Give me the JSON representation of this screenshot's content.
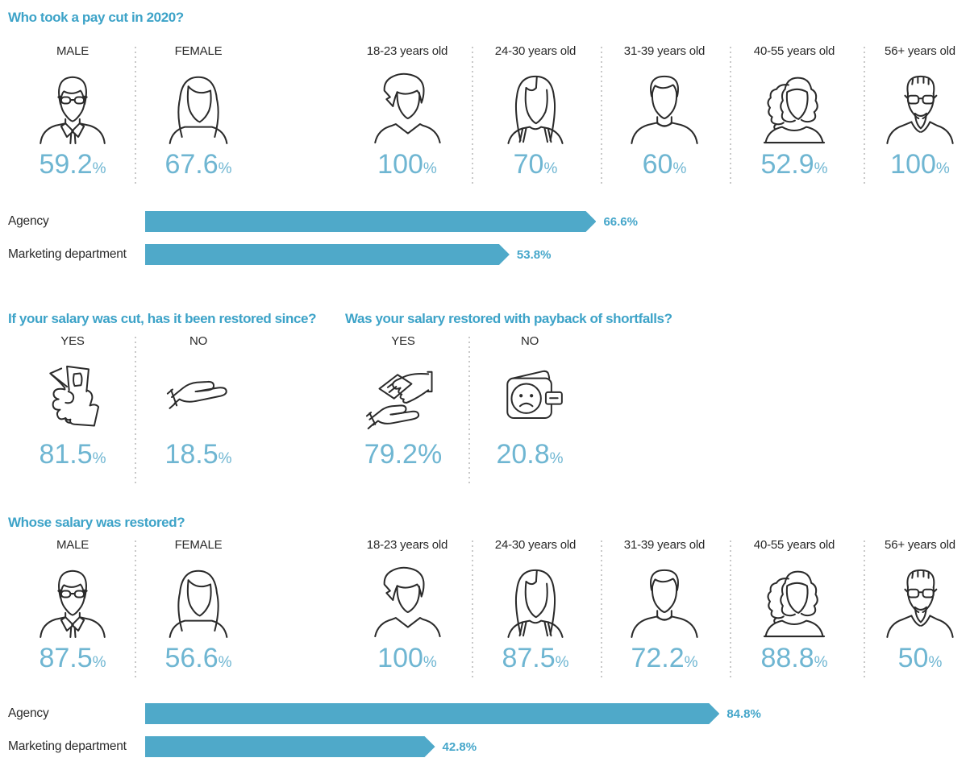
{
  "colors": {
    "title_blue": "#3da3c8",
    "value_blue": "#6fb6d2",
    "bar_blue": "#4fa9c9",
    "bar_label_blue": "#45a6ca",
    "text_dark": "#231f20",
    "divider_gray": "#c8c8c8"
  },
  "sections": {
    "paycut": {
      "title": "Who took a pay cut in 2020?",
      "items": [
        {
          "label": "MALE",
          "value": "59.2",
          "pct": "%"
        },
        {
          "label": "FEMALE",
          "value": "67.6",
          "pct": "%"
        },
        {
          "label": "18-23 years old",
          "value": "100",
          "pct": "%"
        },
        {
          "label": "24-30 years old",
          "value": "70",
          "pct": "%"
        },
        {
          "label": "31-39 years old",
          "value": "60",
          "pct": "%"
        },
        {
          "label": "40-55 years old",
          "value": "52.9",
          "pct": "%"
        },
        {
          "label": "56+ years old",
          "value": "100",
          "pct": "%"
        }
      ]
    },
    "restored": {
      "title": "If your salary was cut, has it been restored since?",
      "items": [
        {
          "label": "YES",
          "value": "81.5",
          "pct": "%"
        },
        {
          "label": "NO",
          "value": "18.5",
          "pct": "%"
        }
      ]
    },
    "payback": {
      "title": "Was your salary restored with payback of shortfalls?",
      "items": [
        {
          "label": "YES",
          "value": "79.2%",
          "pct": ""
        },
        {
          "label": "NO",
          "value": "20.8",
          "pct": "%"
        }
      ]
    },
    "whose": {
      "title": "Whose salary was restored?",
      "items": [
        {
          "label": "MALE",
          "value": "87.5",
          "pct": "%"
        },
        {
          "label": "FEMALE",
          "value": "56.6",
          "pct": "%"
        },
        {
          "label": "18-23 years old",
          "value": "100",
          "pct": "%"
        },
        {
          "label": "24-30 years old",
          "value": "87.5",
          "pct": "%"
        },
        {
          "label": "31-39 years old",
          "value": "72.2",
          "pct": "%"
        },
        {
          "label": "40-55 years old",
          "value": "88.8",
          "pct": "%"
        },
        {
          "label": "56+ years old",
          "value": "50",
          "pct": "%"
        }
      ]
    }
  },
  "charts": {
    "paycut": {
      "rows": [
        {
          "label": "Agency",
          "value": 66.6,
          "value_label": "66.6%"
        },
        {
          "label": "Marketing department",
          "value": 53.8,
          "value_label": "53.8%"
        }
      ]
    },
    "whose": {
      "rows": [
        {
          "label": "Agency",
          "value": 84.8,
          "value_label": "84.8%"
        },
        {
          "label": "Marketing department",
          "value": 42.8,
          "value_label": "42.8%"
        }
      ]
    }
  },
  "chart_data": [
    {
      "type": "pictogram",
      "title": "Who took a pay cut in 2020?",
      "unit": "%",
      "categories": [
        "MALE",
        "FEMALE",
        "18-23 years old",
        "24-30 years old",
        "31-39 years old",
        "40-55 years old",
        "56+ years old"
      ],
      "values": [
        59.2,
        67.6,
        100,
        70,
        60,
        52.9,
        100
      ]
    },
    {
      "type": "bar",
      "orientation": "horizontal",
      "title": "Who took a pay cut in 2020? — by workplace",
      "unit": "%",
      "xlim": [
        0,
        100
      ],
      "categories": [
        "Agency",
        "Marketing department"
      ],
      "values": [
        66.6,
        53.8
      ]
    },
    {
      "type": "pictogram",
      "title": "If your salary was cut, has it been restored since?",
      "unit": "%",
      "categories": [
        "YES",
        "NO"
      ],
      "values": [
        81.5,
        18.5
      ]
    },
    {
      "type": "pictogram",
      "title": "Was your salary restored with payback of shortfalls?",
      "unit": "%",
      "categories": [
        "YES",
        "NO"
      ],
      "values": [
        79.2,
        20.8
      ]
    },
    {
      "type": "pictogram",
      "title": "Whose salary was restored?",
      "unit": "%",
      "categories": [
        "MALE",
        "FEMALE",
        "18-23 years old",
        "24-30 years old",
        "31-39 years old",
        "40-55 years old",
        "56+ years old"
      ],
      "values": [
        87.5,
        56.6,
        100,
        87.5,
        72.2,
        88.8,
        50
      ]
    },
    {
      "type": "bar",
      "orientation": "horizontal",
      "title": "Whose salary was restored? — by workplace",
      "unit": "%",
      "xlim": [
        0,
        100
      ],
      "categories": [
        "Agency",
        "Marketing department"
      ],
      "values": [
        84.8,
        42.8
      ]
    }
  ]
}
